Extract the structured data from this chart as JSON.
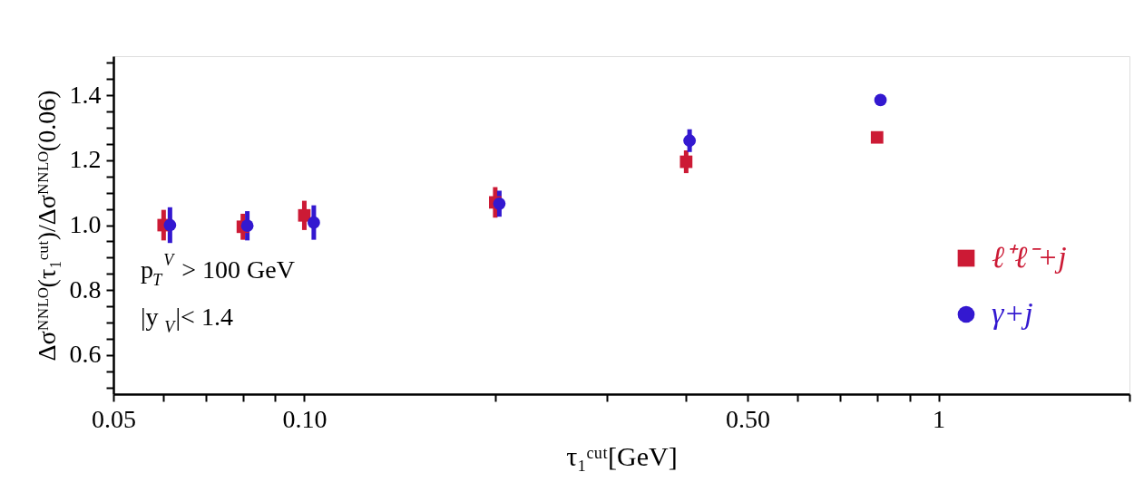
{
  "chart_data": {
    "type": "scatter",
    "xlabel": "τ₁ᶜᵘᵗ[GeV]",
    "ylabel": "Δσᴺᴺᴸᴼ(τ₁ᶜᵘᵗ)/Δσᴺᴺᴸᴼ(0.06)",
    "log": "x",
    "xlim": [
      0.05,
      2
    ],
    "xticks": [
      {
        "value": 0.05,
        "label": "0.05"
      },
      {
        "value": 0.06,
        "label": null
      },
      {
        "value": 0.07,
        "label": null
      },
      {
        "value": 0.08,
        "label": null
      },
      {
        "value": 0.09,
        "label": null
      },
      {
        "value": 0.1,
        "label": "0.10"
      },
      {
        "value": 0.2,
        "label": null
      },
      {
        "value": 0.3,
        "label": null
      },
      {
        "value": 0.4,
        "label": null
      },
      {
        "value": 0.5,
        "label": "0.50"
      },
      {
        "value": 0.6,
        "label": null
      },
      {
        "value": 0.7,
        "label": null
      },
      {
        "value": 0.8,
        "label": null
      },
      {
        "value": 0.9,
        "label": null
      },
      {
        "value": 1,
        "label": "1"
      },
      {
        "value": 2,
        "label": null
      }
    ],
    "ylim": [
      0.48,
      1.52
    ],
    "yticks": [
      {
        "value": 0.5,
        "label": null
      },
      {
        "value": 0.55,
        "label": null
      },
      0.6,
      {
        "value": 0.65,
        "label": null
      },
      {
        "value": 0.7,
        "label": null
      },
      {
        "value": 0.75,
        "label": null
      },
      0.8,
      {
        "value": 0.85,
        "label": null
      },
      {
        "value": 0.9,
        "label": null
      },
      {
        "value": 0.95,
        "label": null
      },
      {
        "value": 1,
        "label": "1.0"
      },
      {
        "value": 1.05,
        "label": null
      },
      {
        "value": 1.1,
        "label": null
      },
      {
        "value": 1.15,
        "label": null
      },
      1.2,
      {
        "value": 1.25,
        "label": null
      },
      {
        "value": 1.3,
        "label": null
      },
      {
        "value": 1.35,
        "label": null
      },
      1.4,
      {
        "value": 1.45,
        "label": null
      },
      {
        "value": 1.5,
        "label": null
      }
    ],
    "grid": false,
    "legend": "bottom right",
    "series": [
      {
        "name": "ℓ⁺ℓ⁻+j",
        "color": "#cc1a35",
        "marker": "square",
        "x": [
          0.06,
          0.08,
          0.1,
          0.2,
          0.4,
          0.8
        ],
        "values": [
          1.0,
          0.995,
          1.03,
          1.07,
          1.195,
          1.27
        ],
        "errors": [
          0.047,
          0.04,
          0.045,
          0.047,
          0.035,
          0.01
        ]
      },
      {
        "name": "γ+j",
        "color": "#3318d0",
        "marker": "circle",
        "x": [
          0.0614,
          0.0813,
          0.1035,
          0.203,
          0.405,
          0.81
        ],
        "values": [
          1.0,
          0.998,
          1.008,
          1.066,
          1.26,
          1.385
        ],
        "errors": [
          0.055,
          0.045,
          0.053,
          0.04,
          0.035,
          0.015
        ]
      }
    ],
    "annotations": [
      "p$_{T}$$^{V}$ > 100 GeV",
      "|y$_{V}$|< 1.4"
    ]
  }
}
